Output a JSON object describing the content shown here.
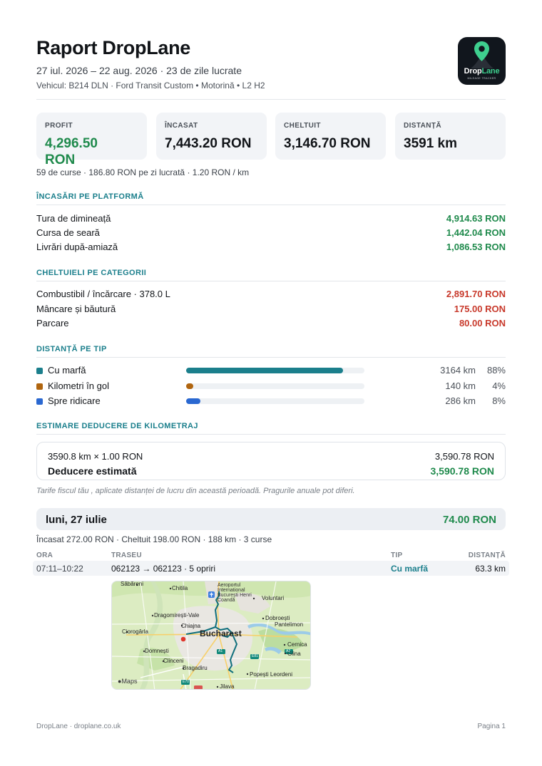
{
  "header": {
    "title": "Raport DropLane",
    "period": "27 iul. 2026 – 22 aug. 2026 · 23 de zile lucrate",
    "vehicle": "Vehicul: B214 DLN · Ford Transit Custom • Motorină • L2 H2",
    "logo": {
      "name_main": "Drop",
      "name_accent": "Lane",
      "tagline": "MILEAGE TRACKER",
      "icon": "map-pin-road-icon"
    }
  },
  "kpis": [
    {
      "label": "PROFIT",
      "value": "4,296.50 RON"
    },
    {
      "label": "ÎNCASAT",
      "value": "7,443.20 RON"
    },
    {
      "label": "CHELTUIT",
      "value": "3,146.70 RON"
    },
    {
      "label": "DISTANȚĂ",
      "value": "3591 km"
    }
  ],
  "summary": "59 de curse   ·   186.80 RON pe zi lucrată   ·   1.20 RON / km",
  "income": {
    "title": "ÎNCASĂRI PE PLATFORMĂ",
    "rows": [
      {
        "label": "Tura de dimineață",
        "value": "4,914.63 RON"
      },
      {
        "label": "Cursa de seară",
        "value": "1,442.04 RON"
      },
      {
        "label": "Livrări după-amiază",
        "value": "1,086.53 RON"
      }
    ]
  },
  "expenses": {
    "title": "CHELTUIELI PE CATEGORII",
    "rows": [
      {
        "label": "Combustibil / încărcare  ·  378.0 L",
        "value": "2,891.70 RON"
      },
      {
        "label": "Mâncare și băutură",
        "value": "175.00 RON"
      },
      {
        "label": "Parcare",
        "value": "80.00 RON"
      }
    ]
  },
  "distance": {
    "title": "DISTANȚĂ PE TIP",
    "rows": [
      {
        "label": "Cu marfă",
        "km": "3164 km",
        "pct": "88%",
        "fraction": 0.88,
        "color": "#1b7f8c"
      },
      {
        "label": "Kilometri în gol",
        "km": "140 km",
        "pct": "4%",
        "fraction": 0.04,
        "color": "#b0650f"
      },
      {
        "label": "Spre ridicare",
        "km": "286 km",
        "pct": "8%",
        "fraction": 0.08,
        "color": "#2a68d1"
      }
    ]
  },
  "deduction": {
    "title": "ESTIMARE DEDUCERE DE KILOMETRAJ",
    "formula": "3590.8 km × 1.00 RON",
    "formula_value": "3,590.78 RON",
    "estimate_label": "Deducere estimată",
    "estimate_value": "3,590.78 RON",
    "note": "Tarife fiscul tău , aplicate distanței de lucru din această perioadă. Pragurile anuale pot diferi."
  },
  "day": {
    "label": "luni, 27 iulie",
    "profit": "74.00 RON",
    "summary": "Încasat 272.00 RON   ·   Cheltuit 198.00 RON   ·   188 km   ·   3 curse",
    "columns": {
      "time": "ORA",
      "route": "TRASEU",
      "type": "TIP",
      "distance": "DISTANȚĂ"
    },
    "trip": {
      "time": "07:11–10:22",
      "route": "062123 → 062123  ·  5 opriri",
      "type": "Cu marfă",
      "distance": "63.3 km"
    }
  },
  "map": {
    "labels": {
      "sabareni": "Săbăreni",
      "chitila": "Chitila",
      "airport": "Aeroportul International București Henri Coandă",
      "voluntari": "Voluntari",
      "dragomiresti": "Dragomirești-Vale",
      "chiajna": "Chiajna",
      "dobroesti": "Dobroești",
      "pantelimon": "Pantelimon",
      "ciorogarla": "Ciorogârla",
      "bucharest": "Bucharest",
      "cernica": "Cernica",
      "domnesti": "Domnești",
      "glina": "Glina",
      "clinceni": "Clinceni",
      "bragadiru": "Bragadiru",
      "popesti": "Popești Leordeni",
      "jilava": "Jilava",
      "attribution": "Maps",
      "road_a1": "A1",
      "road_a2": "A2",
      "road_dn1": "E81",
      "road_e70": "E70"
    }
  },
  "footer": {
    "left": "DropLane  ·  droplane.co.uk",
    "right": "Pagina 1"
  }
}
